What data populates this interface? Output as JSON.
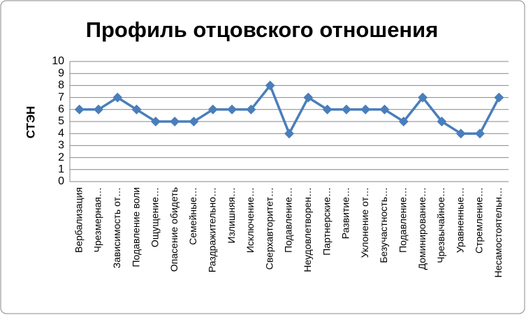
{
  "chart_data": {
    "type": "line",
    "title": "Профиль отцовского отношения",
    "y_label": "СТЭН",
    "categories": [
      "Вербализация",
      "Чрезмерная…",
      "Зависимость от…",
      "Подавление воли",
      "Ощущение…",
      "Опасение обидеть",
      "Семейные…",
      "Раздражительно…",
      "Излишняя…",
      "Исключение…",
      "Сверхавторитет…",
      "Подавление…",
      "Неудовлетворен…",
      "Партнерские…",
      "Развитие…",
      "Уклонение от…",
      "Безучастность…",
      "Подавление…",
      "Доминирование…",
      "Чрезвычайное…",
      "Уравненные…",
      "Стремление…",
      "Несамостоятельн…"
    ],
    "values": [
      6,
      6,
      7,
      6,
      5,
      5,
      5,
      6,
      6,
      6,
      8,
      4,
      7,
      6,
      6,
      6,
      6,
      5,
      7,
      5,
      4,
      4,
      7
    ],
    "color": "#4a7ebb",
    "ylim": [
      0,
      10
    ],
    "yticks": [
      0,
      1,
      2,
      3,
      4,
      5,
      6,
      7,
      8,
      9,
      10
    ],
    "grid": true
  }
}
